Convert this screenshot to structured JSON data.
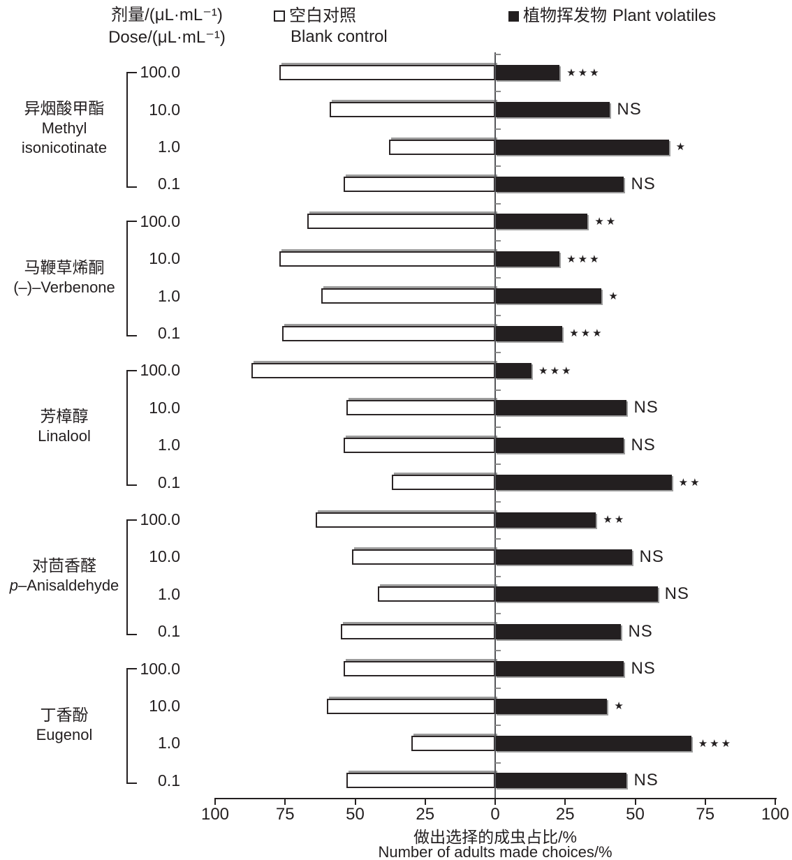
{
  "header": {
    "dose_label_zh": "剂量/(μL·mL⁻¹)",
    "dose_label_en": "Dose/(μL·mL⁻¹)"
  },
  "legend": [
    {
      "swatch": "open-square",
      "label_zh": "空白对照",
      "label_en": "Blank control"
    },
    {
      "swatch": "filled-square",
      "label_zh": "植物挥发物",
      "label_en": "Plant volatiles"
    }
  ],
  "colors": {
    "bar_fill": "#231f20",
    "bar_outline": "#2a2425",
    "shadow": "#9c9c9c",
    "axis": "#231f20"
  },
  "chart_data": {
    "type": "bar",
    "orientation": "horizontal-diverging",
    "units": "%",
    "series": [
      {
        "name": "空白对照 Blank control",
        "side": "left",
        "fill": "white"
      },
      {
        "name": "植物挥发物 Plant volatiles",
        "side": "right",
        "fill": "black"
      }
    ],
    "x_axis": {
      "ticks": [
        "100",
        "75",
        "50",
        "25",
        "0",
        "25",
        "50",
        "75",
        "100"
      ],
      "tick_values": [
        -100,
        -75,
        -50,
        -25,
        0,
        25,
        50,
        75,
        100
      ],
      "title_zh": "做出选择的成虫占比/%",
      "title_en": "Number of adults made choices/%"
    },
    "doses": [
      "100.0",
      "10.0",
      "1.0",
      "0.1"
    ],
    "groups": [
      {
        "name_zh": "异烟酸甲酯",
        "name_en_lines": [
          "Methyl",
          "isonicotinate"
        ],
        "rows": [
          {
            "dose": "100.0",
            "blank": 77,
            "volatile": 23,
            "sig": "***"
          },
          {
            "dose": "10.0",
            "blank": 59,
            "volatile": 41,
            "sig": "NS"
          },
          {
            "dose": "1.0",
            "blank": 38,
            "volatile": 62,
            "sig": "*"
          },
          {
            "dose": "0.1",
            "blank": 54,
            "volatile": 46,
            "sig": "NS"
          }
        ]
      },
      {
        "name_zh": "马鞭草烯酮",
        "name_en_lines": [
          "(–)–Verbenone"
        ],
        "rows": [
          {
            "dose": "100.0",
            "blank": 67,
            "volatile": 33,
            "sig": "**"
          },
          {
            "dose": "10.0",
            "blank": 77,
            "volatile": 23,
            "sig": "***"
          },
          {
            "dose": "1.0",
            "blank": 62,
            "volatile": 38,
            "sig": "*"
          },
          {
            "dose": "0.1",
            "blank": 76,
            "volatile": 24,
            "sig": "***"
          }
        ]
      },
      {
        "name_zh": "芳樟醇",
        "name_en_lines": [
          "Linalool"
        ],
        "rows": [
          {
            "dose": "100.0",
            "blank": 87,
            "volatile": 13,
            "sig": "***"
          },
          {
            "dose": "10.0",
            "blank": 53,
            "volatile": 47,
            "sig": "NS"
          },
          {
            "dose": "1.0",
            "blank": 54,
            "volatile": 46,
            "sig": "NS"
          },
          {
            "dose": "0.1",
            "blank": 37,
            "volatile": 63,
            "sig": "**"
          }
        ]
      },
      {
        "name_zh": "对茴香醛",
        "en_italic_prefix": "p",
        "name_en_lines": [
          "–Anisaldehyde"
        ],
        "rows": [
          {
            "dose": "100.0",
            "blank": 64,
            "volatile": 36,
            "sig": "**"
          },
          {
            "dose": "10.0",
            "blank": 51,
            "volatile": 49,
            "sig": "NS"
          },
          {
            "dose": "1.0",
            "blank": 42,
            "volatile": 58,
            "sig": "NS"
          },
          {
            "dose": "0.1",
            "blank": 55,
            "volatile": 45,
            "sig": "NS"
          }
        ]
      },
      {
        "name_zh": "丁香酚",
        "name_en_lines": [
          "Eugenol"
        ],
        "rows": [
          {
            "dose": "100.0",
            "blank": 54,
            "volatile": 46,
            "sig": "NS"
          },
          {
            "dose": "10.0",
            "blank": 60,
            "volatile": 40,
            "sig": "*"
          },
          {
            "dose": "1.0",
            "blank": 30,
            "volatile": 70,
            "sig": "***"
          },
          {
            "dose": "0.1",
            "blank": 53,
            "volatile": 47,
            "sig": "NS"
          }
        ]
      }
    ],
    "significance_legend_note": "NS = not significant, * ** *** = significance markers shown right of black bars"
  }
}
